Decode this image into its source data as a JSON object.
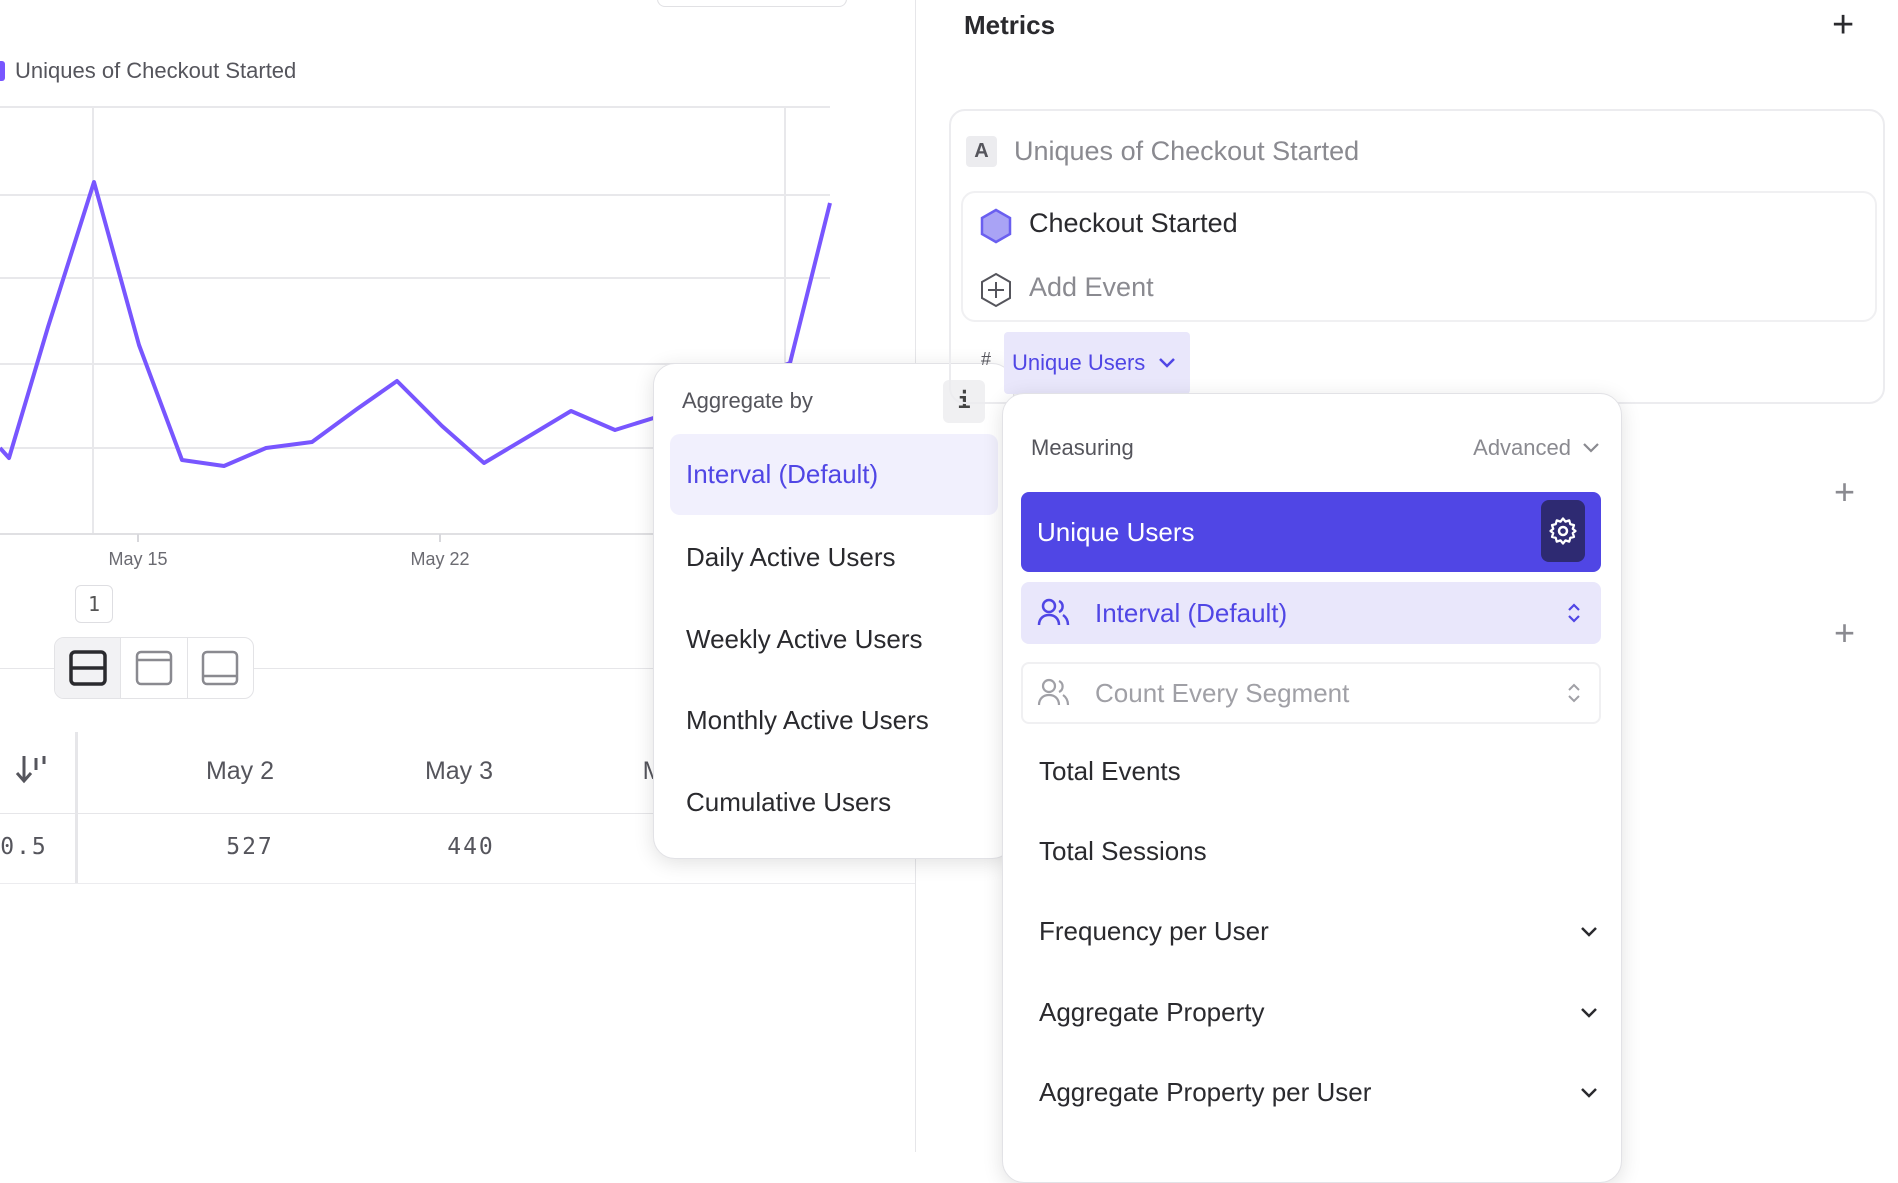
{
  "chart": {
    "legend": "Uniques of Checkout Started",
    "line_color": "#7856ff",
    "x_labels": [
      "May 15",
      "May 22"
    ],
    "page_badge": "1"
  },
  "table": {
    "headers": [
      "May 2",
      "May 3",
      "M"
    ],
    "row": [
      "0.5",
      "527",
      "440"
    ]
  },
  "aggregate_menu": {
    "title": "Aggregate by",
    "info": "i",
    "items": [
      "Interval (Default)",
      "Daily Active Users",
      "Weekly Active Users",
      "Monthly Active Users",
      "Cumulative Users"
    ],
    "selected": "Interval (Default)"
  },
  "metrics": {
    "title": "Metrics",
    "metric": {
      "letter": "A",
      "name": "Uniques of Checkout Started",
      "event": "Checkout Started",
      "add_event": "Add Event",
      "hash": "#",
      "measure_chip": "Unique Users"
    }
  },
  "measuring_menu": {
    "title": "Measuring",
    "advanced": "Advanced",
    "selected": "Unique Users",
    "interval": "Interval (Default)",
    "count": "Count Every Segment",
    "items": [
      "Total Events",
      "Total Sessions",
      "Frequency per User",
      "Aggregate Property",
      "Aggregate Property per User"
    ],
    "accent": "#5046e5"
  }
}
